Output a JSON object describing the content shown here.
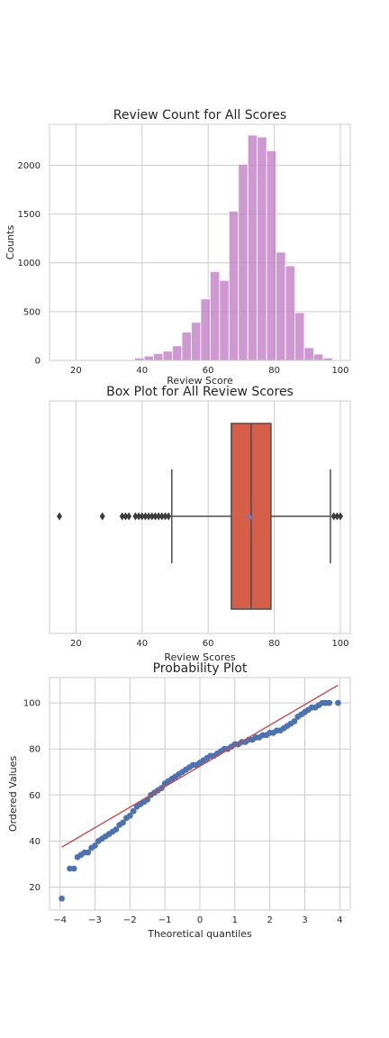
{
  "chart_data": [
    {
      "type": "histogram",
      "title": "Review Count for All Scores",
      "xlabel": "Review Score",
      "ylabel": "Counts",
      "xlim": [
        12,
        103
      ],
      "ylim": [
        0,
        2420
      ],
      "xticks": [
        20,
        40,
        60,
        80,
        100
      ],
      "yticks": [
        0,
        500,
        1000,
        1500,
        2000
      ],
      "grid": true,
      "bar_color": "#c07bc4",
      "bins": [
        {
          "x0": 15.0,
          "x1": 17.85,
          "count": 1
        },
        {
          "x0": 17.85,
          "x1": 20.7,
          "count": 0
        },
        {
          "x0": 20.7,
          "x1": 23.55,
          "count": 0
        },
        {
          "x0": 23.55,
          "x1": 26.4,
          "count": 0
        },
        {
          "x0": 26.4,
          "x1": 29.25,
          "count": 1
        },
        {
          "x0": 29.25,
          "x1": 32.1,
          "count": 0
        },
        {
          "x0": 32.1,
          "x1": 34.95,
          "count": 4
        },
        {
          "x0": 34.95,
          "x1": 37.8,
          "count": 8
        },
        {
          "x0": 37.8,
          "x1": 40.65,
          "count": 25
        },
        {
          "x0": 40.65,
          "x1": 43.5,
          "count": 45
        },
        {
          "x0": 43.5,
          "x1": 46.35,
          "count": 70
        },
        {
          "x0": 46.35,
          "x1": 49.2,
          "count": 95
        },
        {
          "x0": 49.2,
          "x1": 52.05,
          "count": 150
        },
        {
          "x0": 52.05,
          "x1": 54.9,
          "count": 290
        },
        {
          "x0": 54.9,
          "x1": 57.75,
          "count": 390
        },
        {
          "x0": 57.75,
          "x1": 60.6,
          "count": 630
        },
        {
          "x0": 60.6,
          "x1": 63.45,
          "count": 910
        },
        {
          "x0": 63.45,
          "x1": 66.3,
          "count": 820
        },
        {
          "x0": 66.3,
          "x1": 69.15,
          "count": 1530
        },
        {
          "x0": 69.15,
          "x1": 72.0,
          "count": 2010
        },
        {
          "x0": 72.0,
          "x1": 74.85,
          "count": 2310
        },
        {
          "x0": 74.85,
          "x1": 77.7,
          "count": 2290
        },
        {
          "x0": 77.7,
          "x1": 80.55,
          "count": 2150
        },
        {
          "x0": 80.55,
          "x1": 83.4,
          "count": 1110
        },
        {
          "x0": 83.4,
          "x1": 86.25,
          "count": 970
        },
        {
          "x0": 86.25,
          "x1": 89.1,
          "count": 490
        },
        {
          "x0": 89.1,
          "x1": 91.95,
          "count": 130
        },
        {
          "x0": 91.95,
          "x1": 94.8,
          "count": 65
        },
        {
          "x0": 94.8,
          "x1": 97.65,
          "count": 25
        },
        {
          "x0": 97.65,
          "x1": 100.5,
          "count": 8
        }
      ]
    },
    {
      "type": "box",
      "title": "Box Plot for All Review Scores",
      "xlabel": "Review Scores",
      "ylabel": "",
      "xlim": [
        12,
        103
      ],
      "xticks": [
        20,
        40,
        60,
        80,
        100
      ],
      "grid": true,
      "box_color": "#d65f4a",
      "q1": 67,
      "median": 73,
      "q3": 79,
      "whisker_low": 49,
      "whisker_high": 97,
      "mean": 72.5,
      "outliers": [
        15,
        28,
        34,
        35,
        36,
        38,
        39,
        40,
        41,
        42,
        43,
        44,
        45,
        46,
        47,
        48,
        98,
        99,
        100
      ]
    },
    {
      "type": "scatter",
      "title": "Probability Plot",
      "xlabel": "Theoretical quantiles",
      "ylabel": "Ordered Values",
      "xlim": [
        -4.3,
        4.3
      ],
      "ylim": [
        10,
        111
      ],
      "xticks": [
        -4,
        -3,
        -2,
        -1,
        0,
        1,
        2,
        3,
        4
      ],
      "yticks": [
        20,
        40,
        60,
        80,
        100
      ],
      "grid": true,
      "point_color": "#4c72b0",
      "line_color": "#c44e52",
      "fit_line": {
        "x": [
          -3.95,
          3.95
        ],
        "y": [
          37.3,
          107.7
        ]
      },
      "points": [
        [
          -3.95,
          15
        ],
        [
          -3.72,
          28
        ],
        [
          -3.6,
          28
        ],
        [
          -3.5,
          33
        ],
        [
          -3.4,
          34
        ],
        [
          -3.3,
          35
        ],
        [
          -3.2,
          35
        ],
        [
          -3.1,
          37
        ],
        [
          -3.0,
          38
        ],
        [
          -2.9,
          40
        ],
        [
          -2.8,
          41
        ],
        [
          -2.7,
          42
        ],
        [
          -2.6,
          43
        ],
        [
          -2.5,
          44
        ],
        [
          -2.4,
          45
        ],
        [
          -2.3,
          47
        ],
        [
          -2.2,
          48
        ],
        [
          -2.1,
          50
        ],
        [
          -2.0,
          51
        ],
        [
          -1.9,
          53
        ],
        [
          -1.8,
          55
        ],
        [
          -1.7,
          56
        ],
        [
          -1.6,
          57
        ],
        [
          -1.5,
          58
        ],
        [
          -1.4,
          60
        ],
        [
          -1.3,
          61
        ],
        [
          -1.2,
          62
        ],
        [
          -1.1,
          63
        ],
        [
          -1.0,
          65
        ],
        [
          -0.9,
          66
        ],
        [
          -0.8,
          67
        ],
        [
          -0.7,
          68
        ],
        [
          -0.6,
          69
        ],
        [
          -0.5,
          70
        ],
        [
          -0.4,
          71
        ],
        [
          -0.3,
          72
        ],
        [
          -0.2,
          73
        ],
        [
          -0.1,
          73
        ],
        [
          0.0,
          74
        ],
        [
          0.1,
          75
        ],
        [
          0.2,
          76
        ],
        [
          0.3,
          77
        ],
        [
          0.4,
          77
        ],
        [
          0.5,
          78
        ],
        [
          0.6,
          79
        ],
        [
          0.7,
          80
        ],
        [
          0.8,
          80
        ],
        [
          0.9,
          81
        ],
        [
          1.0,
          82
        ],
        [
          1.1,
          82
        ],
        [
          1.2,
          83
        ],
        [
          1.3,
          83
        ],
        [
          1.4,
          84
        ],
        [
          1.5,
          84
        ],
        [
          1.6,
          85
        ],
        [
          1.7,
          85
        ],
        [
          1.8,
          86
        ],
        [
          1.9,
          86
        ],
        [
          2.0,
          87
        ],
        [
          2.1,
          87
        ],
        [
          2.2,
          88
        ],
        [
          2.3,
          88
        ],
        [
          2.4,
          89
        ],
        [
          2.5,
          90
        ],
        [
          2.6,
          91
        ],
        [
          2.7,
          92
        ],
        [
          2.8,
          94
        ],
        [
          2.9,
          95
        ],
        [
          3.0,
          96
        ],
        [
          3.1,
          97
        ],
        [
          3.2,
          98
        ],
        [
          3.3,
          98
        ],
        [
          3.4,
          99
        ],
        [
          3.5,
          100
        ],
        [
          3.6,
          100
        ],
        [
          3.7,
          100
        ],
        [
          3.95,
          100
        ]
      ]
    }
  ]
}
